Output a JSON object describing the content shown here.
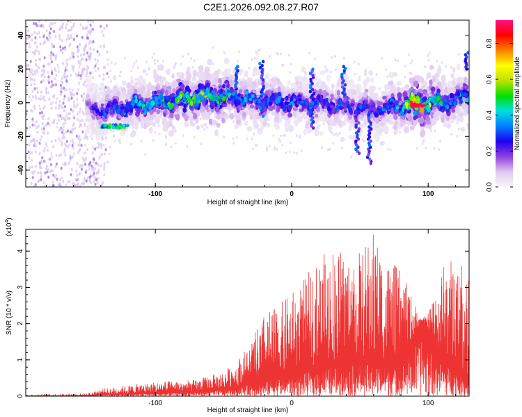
{
  "title": "C2E1.2026.092.08.27.R07",
  "colors": {
    "snr_line": "#ee3333",
    "colorbar": [
      "#f8f8f8",
      "#e0c8f0",
      "#9040e0",
      "#2000f0",
      "#0080ff",
      "#00e0e0",
      "#00e000",
      "#c0e000",
      "#ffff00",
      "#ff8000",
      "#ff0000",
      "#ff1080"
    ]
  },
  "chart_data": [
    {
      "type": "heatmap",
      "name": "spectrogram",
      "title": "C2E1.2026.092.08.27.R07",
      "xlabel": "Height of straight line (km)",
      "ylabel": "Frequency (Hz)",
      "xlim": [
        -195,
        130
      ],
      "ylim": [
        -50,
        49
      ],
      "x_ticks": [
        -100,
        0,
        100
      ],
      "y_ticks": [
        -40,
        -20,
        0,
        20,
        40
      ],
      "colorbar": {
        "label": "Normalized spectral amplitude",
        "range": [
          0.0,
          0.93
        ],
        "ticks": [
          "0.0",
          "0.2",
          "0.4",
          "0.6",
          "0.8"
        ]
      },
      "ridge": {
        "x": [
          -195,
          -150,
          -140,
          -100,
          -80,
          -60,
          -40,
          -20,
          0,
          20,
          40,
          60,
          80,
          90,
          100,
          110,
          120,
          130
        ],
        "center_hz": [
          -3,
          -3,
          -5,
          0,
          2,
          4,
          3,
          1,
          0,
          0,
          -2,
          -4,
          -2,
          -1,
          0,
          0,
          2,
          5
        ],
        "peak_amplitude": [
          0.15,
          0.2,
          0.3,
          0.45,
          0.55,
          0.55,
          0.4,
          0.35,
          0.35,
          0.3,
          0.3,
          0.3,
          0.4,
          0.9,
          0.6,
          0.45,
          0.35,
          0.4
        ]
      }
    },
    {
      "type": "line",
      "name": "snr",
      "xlabel": "Height of straight line (km)",
      "ylabel": "SNR (10 * v/v)",
      "y_multiplier": "(x10",
      "y_multiplier_exp": "4",
      "y_multiplier_close": ")",
      "xlim": [
        -195,
        130
      ],
      "ylim": [
        0,
        4.6
      ],
      "x_ticks": [
        -100,
        0,
        100
      ],
      "y_ticks": [
        0,
        1,
        2,
        3,
        4
      ],
      "envelope": {
        "x": [
          -195,
          -150,
          -140,
          -100,
          -70,
          -50,
          -40,
          -30,
          -20,
          -10,
          0,
          10,
          20,
          30,
          40,
          50,
          60,
          70,
          80,
          90,
          95,
          100,
          110,
          120,
          125,
          130
        ],
        "base": [
          0.0,
          0.0,
          0.05,
          0.1,
          0.15,
          0.2,
          0.3,
          0.4,
          0.5,
          0.6,
          0.7,
          0.8,
          0.9,
          1.0,
          1.0,
          1.1,
          1.1,
          1.0,
          1.0,
          1.7,
          2.1,
          1.9,
          1.1,
          0.9,
          0.6,
          0.5
        ],
        "peak": [
          0.05,
          0.08,
          0.2,
          0.4,
          0.45,
          0.7,
          1.0,
          1.5,
          2.3,
          2.5,
          2.9,
          3.3,
          3.8,
          4.2,
          4.0,
          4.0,
          4.6,
          3.8,
          3.5,
          2.6,
          2.1,
          2.3,
          3.6,
          4.0,
          3.8,
          3.6
        ]
      }
    }
  ]
}
